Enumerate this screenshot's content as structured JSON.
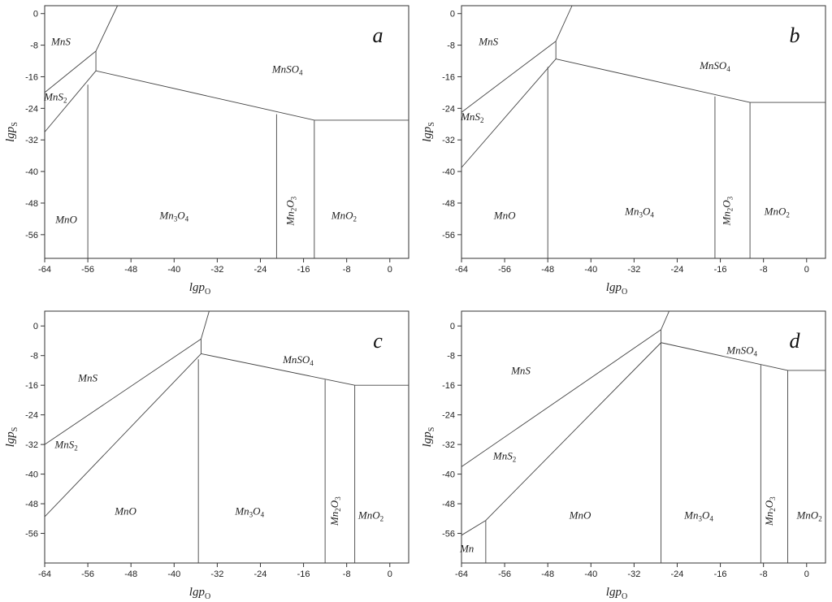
{
  "chart_data": [
    {
      "type": "phase-diagram",
      "panel_label": "a",
      "xlabel": "lgp",
      "xlabel_sub": "O",
      "ylabel": "lgp",
      "ylabel_sub": "S",
      "xlim": [
        -64,
        3.5
      ],
      "ylim": [
        -62,
        2
      ],
      "xticks": [
        -64,
        -56,
        -48,
        -40,
        -32,
        -24,
        -16,
        -8,
        0
      ],
      "yticks": [
        0,
        -8,
        -16,
        -24,
        -32,
        -40,
        -48,
        -56
      ],
      "boundaries": [
        [
          [
            -64,
            -20
          ],
          [
            -54.5,
            -9.5
          ]
        ],
        [
          [
            -64,
            -30
          ],
          [
            -54.5,
            -14.5
          ]
        ],
        [
          [
            -54.5,
            -9.5
          ],
          [
            -54.5,
            -14.5
          ]
        ],
        [
          [
            -54.5,
            -9.5
          ],
          [
            -50.5,
            2
          ]
        ],
        [
          [
            -54.5,
            -14.5
          ],
          [
            -14,
            -27
          ]
        ],
        [
          [
            -14,
            -27
          ],
          [
            3.5,
            -27
          ]
        ],
        [
          [
            -56,
            -18
          ],
          [
            -56,
            -62
          ]
        ],
        [
          [
            -21,
            -25.5
          ],
          [
            -21,
            -62
          ]
        ],
        [
          [
            -14,
            -27
          ],
          [
            -14,
            -62
          ]
        ]
      ],
      "regions": [
        {
          "base": "MnS",
          "sub": "",
          "x": -61,
          "y": -8
        },
        {
          "base": "MnS",
          "sub": "2",
          "x": -62,
          "y": -22
        },
        {
          "base": "MnSO",
          "sub": "4",
          "x": -19,
          "y": -15
        },
        {
          "base": "MnO",
          "sub": "",
          "x": -60,
          "y": -53
        },
        {
          "base": "Mn",
          "sub": "3O4",
          "x": -40,
          "y": -52
        },
        {
          "base": "Mn",
          "sub": "2O3",
          "x": -17.8,
          "y": -50,
          "rotate": true
        },
        {
          "base": "MnO",
          "sub": "2",
          "x": -8.5,
          "y": -52
        }
      ]
    },
    {
      "type": "phase-diagram",
      "panel_label": "b",
      "xlabel": "lgp",
      "xlabel_sub": "O",
      "ylabel": "lgp",
      "ylabel_sub": "S",
      "xlim": [
        -64,
        3.5
      ],
      "ylim": [
        -62,
        2
      ],
      "xticks": [
        -64,
        -56,
        -48,
        -40,
        -32,
        -24,
        -16,
        -8,
        0
      ],
      "yticks": [
        0,
        -8,
        -16,
        -24,
        -32,
        -40,
        -48,
        -56
      ],
      "boundaries": [
        [
          [
            -64,
            -25
          ],
          [
            -46.5,
            -7
          ]
        ],
        [
          [
            -64,
            -39
          ],
          [
            -46.5,
            -11.5
          ]
        ],
        [
          [
            -46.5,
            -7
          ],
          [
            -46.5,
            -11.5
          ]
        ],
        [
          [
            -46.5,
            -7
          ],
          [
            -43.5,
            2
          ]
        ],
        [
          [
            -46.5,
            -11.5
          ],
          [
            -10.5,
            -22.5
          ]
        ],
        [
          [
            -10.5,
            -22.5
          ],
          [
            3.5,
            -22.5
          ]
        ],
        [
          [
            -48,
            -13.5
          ],
          [
            -48,
            -62
          ]
        ],
        [
          [
            -17,
            -21
          ],
          [
            -17,
            -62
          ]
        ],
        [
          [
            -10.5,
            -22.5
          ],
          [
            -10.5,
            -62
          ]
        ]
      ],
      "regions": [
        {
          "base": "MnS",
          "sub": "",
          "x": -59,
          "y": -8
        },
        {
          "base": "MnS",
          "sub": "2",
          "x": -62,
          "y": -27
        },
        {
          "base": "MnSO",
          "sub": "4",
          "x": -17,
          "y": -14
        },
        {
          "base": "MnO",
          "sub": "",
          "x": -56,
          "y": -52
        },
        {
          "base": "Mn",
          "sub": "3O4",
          "x": -31,
          "y": -51
        },
        {
          "base": "Mn",
          "sub": "2O3",
          "x": -14.2,
          "y": -50,
          "rotate": true
        },
        {
          "base": "MnO",
          "sub": "2",
          "x": -5.5,
          "y": -51
        }
      ]
    },
    {
      "type": "phase-diagram",
      "panel_label": "c",
      "xlabel": "lgp",
      "xlabel_sub": "O",
      "ylabel": "lgp",
      "ylabel_sub": "S",
      "xlim": [
        -64,
        3.5
      ],
      "ylim": [
        -64,
        4
      ],
      "xticks": [
        -64,
        -56,
        -48,
        -40,
        -32,
        -24,
        -16,
        -8,
        0
      ],
      "yticks": [
        0,
        -8,
        -16,
        -24,
        -32,
        -40,
        -48,
        -56
      ],
      "boundaries": [
        [
          [
            -64,
            -32
          ],
          [
            -35,
            -3.5
          ]
        ],
        [
          [
            -64,
            -51.5
          ],
          [
            -35,
            -7.5
          ]
        ],
        [
          [
            -35,
            -3.5
          ],
          [
            -35,
            -7.5
          ]
        ],
        [
          [
            -35,
            -3.5
          ],
          [
            -33.5,
            4
          ]
        ],
        [
          [
            -35,
            -7.5
          ],
          [
            -6.5,
            -16
          ]
        ],
        [
          [
            -6.5,
            -16
          ],
          [
            3.5,
            -16
          ]
        ],
        [
          [
            -35.5,
            -9
          ],
          [
            -35.5,
            -64
          ]
        ],
        [
          [
            -12,
            -14.5
          ],
          [
            -12,
            -64
          ]
        ],
        [
          [
            -6.5,
            -16
          ],
          [
            -6.5,
            -64
          ]
        ]
      ],
      "regions": [
        {
          "base": "MnS",
          "sub": "",
          "x": -56,
          "y": -15
        },
        {
          "base": "MnS",
          "sub": "2",
          "x": -60,
          "y": -33
        },
        {
          "base": "MnSO",
          "sub": "4",
          "x": -17,
          "y": -10
        },
        {
          "base": "MnO",
          "sub": "",
          "x": -49,
          "y": -51
        },
        {
          "base": "Mn",
          "sub": "3O4",
          "x": -26,
          "y": -51
        },
        {
          "base": "Mn",
          "sub": "2O3",
          "x": -9.6,
          "y": -50,
          "rotate": true
        },
        {
          "base": "MnO",
          "sub": "2",
          "x": -3.5,
          "y": -52
        }
      ]
    },
    {
      "type": "phase-diagram",
      "panel_label": "d",
      "xlabel": "lgp",
      "xlabel_sub": "O",
      "ylabel": "lgp",
      "ylabel_sub": "S",
      "xlim": [
        -64,
        3.5
      ],
      "ylim": [
        -64,
        4
      ],
      "xticks": [
        -64,
        -56,
        -48,
        -40,
        -32,
        -24,
        -16,
        -8,
        0
      ],
      "yticks": [
        0,
        -8,
        -16,
        -24,
        -32,
        -40,
        -48,
        -56
      ],
      "boundaries": [
        [
          [
            -64,
            -38
          ],
          [
            -27,
            -1
          ]
        ],
        [
          [
            -64,
            -56.5
          ],
          [
            -59.5,
            -52.5
          ]
        ],
        [
          [
            -59.5,
            -52.5
          ],
          [
            -27,
            -4.5
          ]
        ],
        [
          [
            -27,
            -1
          ],
          [
            -27,
            -4.5
          ]
        ],
        [
          [
            -27,
            -1
          ],
          [
            -25.5,
            4
          ]
        ],
        [
          [
            -27,
            -4.5
          ],
          [
            -3.5,
            -12
          ]
        ],
        [
          [
            -3.5,
            -12
          ],
          [
            3.5,
            -12
          ]
        ],
        [
          [
            -59.5,
            -52.5
          ],
          [
            -59.5,
            -64
          ]
        ],
        [
          [
            -27,
            -4.5
          ],
          [
            -27,
            -64
          ]
        ],
        [
          [
            -8.5,
            -10.5
          ],
          [
            -8.5,
            -64
          ]
        ],
        [
          [
            -3.5,
            -12
          ],
          [
            -3.5,
            -64
          ]
        ]
      ],
      "regions": [
        {
          "base": "MnS",
          "sub": "",
          "x": -53,
          "y": -13
        },
        {
          "base": "MnS",
          "sub": "2",
          "x": -56,
          "y": -36
        },
        {
          "base": "MnSO",
          "sub": "4",
          "x": -12,
          "y": -7.5
        },
        {
          "base": "Mn",
          "sub": "",
          "x": -63,
          "y": -61
        },
        {
          "base": "MnO",
          "sub": "",
          "x": -42,
          "y": -52
        },
        {
          "base": "Mn",
          "sub": "3O4",
          "x": -20,
          "y": -52
        },
        {
          "base": "Mn",
          "sub": "2O3",
          "x": -6.3,
          "y": -50,
          "rotate": true
        },
        {
          "base": "MnO",
          "sub": "2",
          "x": 0.5,
          "y": -52
        }
      ]
    }
  ]
}
